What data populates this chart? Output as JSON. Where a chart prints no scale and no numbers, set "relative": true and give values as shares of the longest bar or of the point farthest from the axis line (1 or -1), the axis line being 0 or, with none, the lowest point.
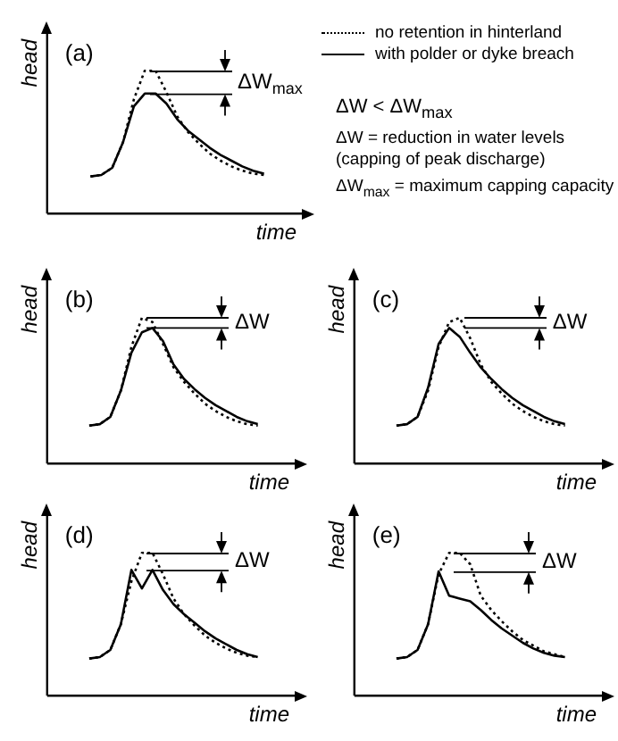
{
  "chart_data": [
    {
      "type": "line",
      "title": "(a)",
      "xlabel": "time",
      "ylabel": "head",
      "relative": true,
      "grid": false,
      "legend": "right",
      "categories": [
        null,
        null,
        null,
        null,
        null,
        null,
        null,
        null,
        null,
        null,
        null,
        null,
        null,
        null,
        null,
        null,
        null,
        null,
        null,
        null,
        null,
        null,
        null,
        null
      ],
      "series": [
        {
          "name": "no retention in hinterland",
          "color": "#000000",
          "line_style": "dotted",
          "values": [
            null,
            null,
            null,
            null,
            0.26,
            0.27,
            0.32,
            0.5,
            0.8,
            1,
            1,
            0.85,
            0.68,
            0.57,
            0.49,
            0.42,
            0.37,
            0.33,
            0.3,
            0.28,
            0.27,
            null,
            null,
            null
          ]
        },
        {
          "name": "with polder or dyke breach",
          "color": "#000000",
          "line_style": "solid",
          "values": [
            null,
            null,
            null,
            null,
            0.26,
            0.27,
            0.32,
            0.5,
            0.75,
            0.84,
            0.84,
            0.77,
            0.66,
            0.58,
            0.52,
            0.46,
            0.41,
            0.37,
            0.33,
            0.3,
            0.28,
            null,
            null,
            null
          ]
        }
      ],
      "annotations": [
        "ΔW$_{max}$",
        "ΔW < ΔW$_{max}$",
        "ΔW = reduction in water levels (capping of peak discharge)",
        "ΔW$_{max}$ = maximum capping capacity"
      ]
    },
    {
      "type": "line",
      "title": "(b)",
      "xlabel": "time",
      "ylabel": "head",
      "relative": true,
      "grid": false,
      "categories": [
        null,
        null,
        null,
        null,
        null,
        null,
        null,
        null,
        null,
        null,
        null,
        null,
        null,
        null,
        null,
        null,
        null,
        null,
        null,
        null,
        null,
        null,
        null,
        null
      ],
      "series": [
        {
          "color": "#000000",
          "line_style": "dotted",
          "values": [
            null,
            null,
            null,
            null,
            0.26,
            0.27,
            0.32,
            0.5,
            0.8,
            1,
            0.97,
            0.82,
            0.66,
            0.56,
            0.48,
            0.41,
            0.36,
            0.32,
            0.29,
            0.27,
            0.26,
            null,
            null,
            null
          ]
        },
        {
          "color": "#000000",
          "line_style": "solid",
          "values": [
            null,
            null,
            null,
            null,
            0.26,
            0.27,
            0.32,
            0.5,
            0.76,
            0.9,
            0.93,
            0.84,
            0.68,
            0.58,
            0.51,
            0.45,
            0.4,
            0.36,
            0.32,
            0.29,
            0.27,
            null,
            null,
            null
          ]
        }
      ],
      "annotations": [
        "ΔW"
      ]
    },
    {
      "type": "line",
      "title": "(c)",
      "xlabel": "time",
      "ylabel": "head",
      "relative": true,
      "grid": false,
      "categories": [
        null,
        null,
        null,
        null,
        null,
        null,
        null,
        null,
        null,
        null,
        null,
        null,
        null,
        null,
        null,
        null,
        null,
        null,
        null,
        null,
        null,
        null,
        null,
        null
      ],
      "series": [
        {
          "color": "#000000",
          "line_style": "dotted",
          "values": [
            null,
            null,
            null,
            null,
            0.26,
            0.27,
            0.32,
            0.5,
            0.8,
            0.97,
            1,
            0.86,
            0.68,
            0.56,
            0.48,
            0.41,
            0.36,
            0.32,
            0.29,
            0.27,
            0.26,
            null,
            null,
            null
          ]
        },
        {
          "color": "#000000",
          "line_style": "solid",
          "values": [
            null,
            null,
            null,
            null,
            0.26,
            0.27,
            0.32,
            0.52,
            0.82,
            0.93,
            0.87,
            0.76,
            0.66,
            0.58,
            0.51,
            0.45,
            0.4,
            0.36,
            0.32,
            0.29,
            0.27,
            null,
            null,
            null
          ]
        }
      ],
      "annotations": [
        "ΔW"
      ]
    },
    {
      "type": "line",
      "title": "(d)",
      "xlabel": "time",
      "ylabel": "head",
      "relative": true,
      "grid": false,
      "categories": [
        null,
        null,
        null,
        null,
        null,
        null,
        null,
        null,
        null,
        null,
        null,
        null,
        null,
        null,
        null,
        null,
        null,
        null,
        null,
        null,
        null,
        null,
        null,
        null
      ],
      "series": [
        {
          "color": "#000000",
          "line_style": "dotted",
          "values": [
            null,
            null,
            null,
            null,
            0.26,
            0.27,
            0.32,
            0.5,
            0.8,
            1,
            1,
            0.85,
            0.68,
            0.57,
            0.49,
            0.42,
            0.37,
            0.33,
            0.3,
            0.28,
            0.27,
            null,
            null,
            null
          ]
        },
        {
          "color": "#000000",
          "line_style": "solid",
          "values": [
            null,
            null,
            null,
            null,
            0.26,
            0.27,
            0.32,
            0.5,
            0.88,
            0.75,
            0.88,
            0.74,
            0.64,
            0.57,
            0.51,
            0.45,
            0.4,
            0.36,
            0.32,
            0.29,
            0.27,
            null,
            null,
            null
          ]
        }
      ],
      "annotations": [
        "ΔW"
      ]
    },
    {
      "type": "line",
      "title": "(e)",
      "xlabel": "time",
      "ylabel": "head",
      "relative": true,
      "grid": false,
      "categories": [
        null,
        null,
        null,
        null,
        null,
        null,
        null,
        null,
        null,
        null,
        null,
        null,
        null,
        null,
        null,
        null,
        null,
        null,
        null,
        null,
        null,
        null,
        null,
        null
      ],
      "series": [
        {
          "color": "#000000",
          "line_style": "dotted",
          "values": [
            null,
            null,
            null,
            null,
            0.26,
            0.27,
            0.32,
            0.5,
            0.85,
            1,
            1,
            0.92,
            0.7,
            0.6,
            0.52,
            0.45,
            0.39,
            0.35,
            0.31,
            0.29,
            0.27,
            null,
            null,
            null
          ]
        },
        {
          "color": "#000000",
          "line_style": "solid",
          "values": [
            null,
            null,
            null,
            null,
            0.26,
            0.27,
            0.32,
            0.5,
            0.87,
            0.7,
            0.68,
            0.66,
            0.6,
            0.53,
            0.47,
            0.42,
            0.37,
            0.33,
            0.3,
            0.28,
            0.27,
            null,
            null,
            null
          ]
        }
      ],
      "annotations": [
        "ΔW"
      ]
    }
  ]
}
